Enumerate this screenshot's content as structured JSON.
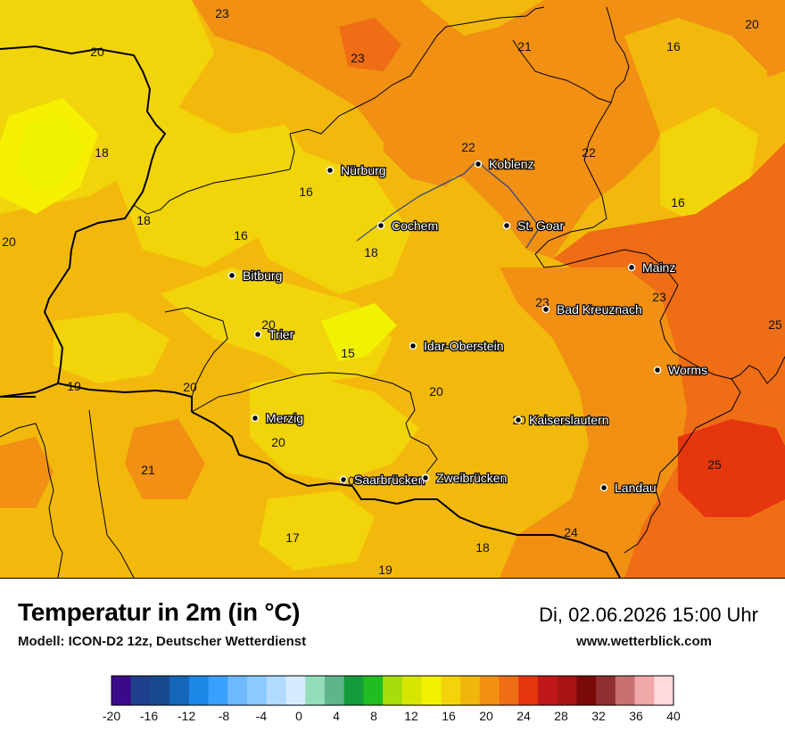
{
  "header": {
    "title": "Temperatur in 2m (in °C)",
    "subtitle": "Modell: ICON-D2 12z, Deutscher Wetterdienst",
    "datetime": "Di, 02.06.2026 15:00 Uhr",
    "website": "www.wetterblick.com"
  },
  "cities": [
    {
      "name": "Nürburg",
      "slug": "nuerburg"
    },
    {
      "name": "Koblenz",
      "slug": "koblenz"
    },
    {
      "name": "Cochem",
      "slug": "cochem"
    },
    {
      "name": "St. Goar",
      "slug": "st-goar"
    },
    {
      "name": "Mainz",
      "slug": "mainz"
    },
    {
      "name": "Bitburg",
      "slug": "bitburg"
    },
    {
      "name": "Bad Kreuznach",
      "slug": "bad-kreuznach"
    },
    {
      "name": "Trier",
      "slug": "trier"
    },
    {
      "name": "Idar-Oberstein",
      "slug": "idar-oberstein"
    },
    {
      "name": "Worms",
      "slug": "worms"
    },
    {
      "name": "Merzig",
      "slug": "merzig"
    },
    {
      "name": "Kaiserslautern",
      "slug": "kaiserslautern"
    },
    {
      "name": "Saarbrücken",
      "slug": "saarbruecken"
    },
    {
      "name": "Zweibrücken",
      "slug": "zweibruecken"
    },
    {
      "name": "Landau",
      "slug": "landau"
    }
  ],
  "temperature_labels": [
    "23",
    "20",
    "23",
    "21",
    "16",
    "20",
    "18",
    "22",
    "22",
    "16",
    "18",
    "16",
    "16",
    "20",
    "18",
    "23",
    "23",
    "25",
    "20",
    "15",
    "19",
    "20",
    "20",
    "20",
    "20",
    "21",
    "20",
    "25",
    "24",
    "17",
    "18",
    "19"
  ],
  "legend": {
    "ticks": [
      "-20",
      "-16",
      "-12",
      "-8",
      "-4",
      "0",
      "4",
      "8",
      "12",
      "16",
      "20",
      "24",
      "28",
      "32",
      "36",
      "40"
    ],
    "colors": [
      "#3a0a8a",
      "#1f3e8c",
      "#174a8f",
      "#1466b8",
      "#1a86e6",
      "#3aa0ff",
      "#6dbaff",
      "#8ccaff",
      "#b0dbff",
      "#d6ebff",
      "#93dcbc",
      "#5fb48a",
      "#149b3a",
      "#1fbd1f",
      "#a8dc0a",
      "#d7e600",
      "#f2f200",
      "#f3d40a",
      "#f1b60c",
      "#f19012",
      "#ef6d14",
      "#e6360e",
      "#c01818",
      "#a81414",
      "#7a0a0a",
      "#8f2e2e",
      "#c87070",
      "#f0a8a8",
      "#ffdada"
    ]
  }
}
